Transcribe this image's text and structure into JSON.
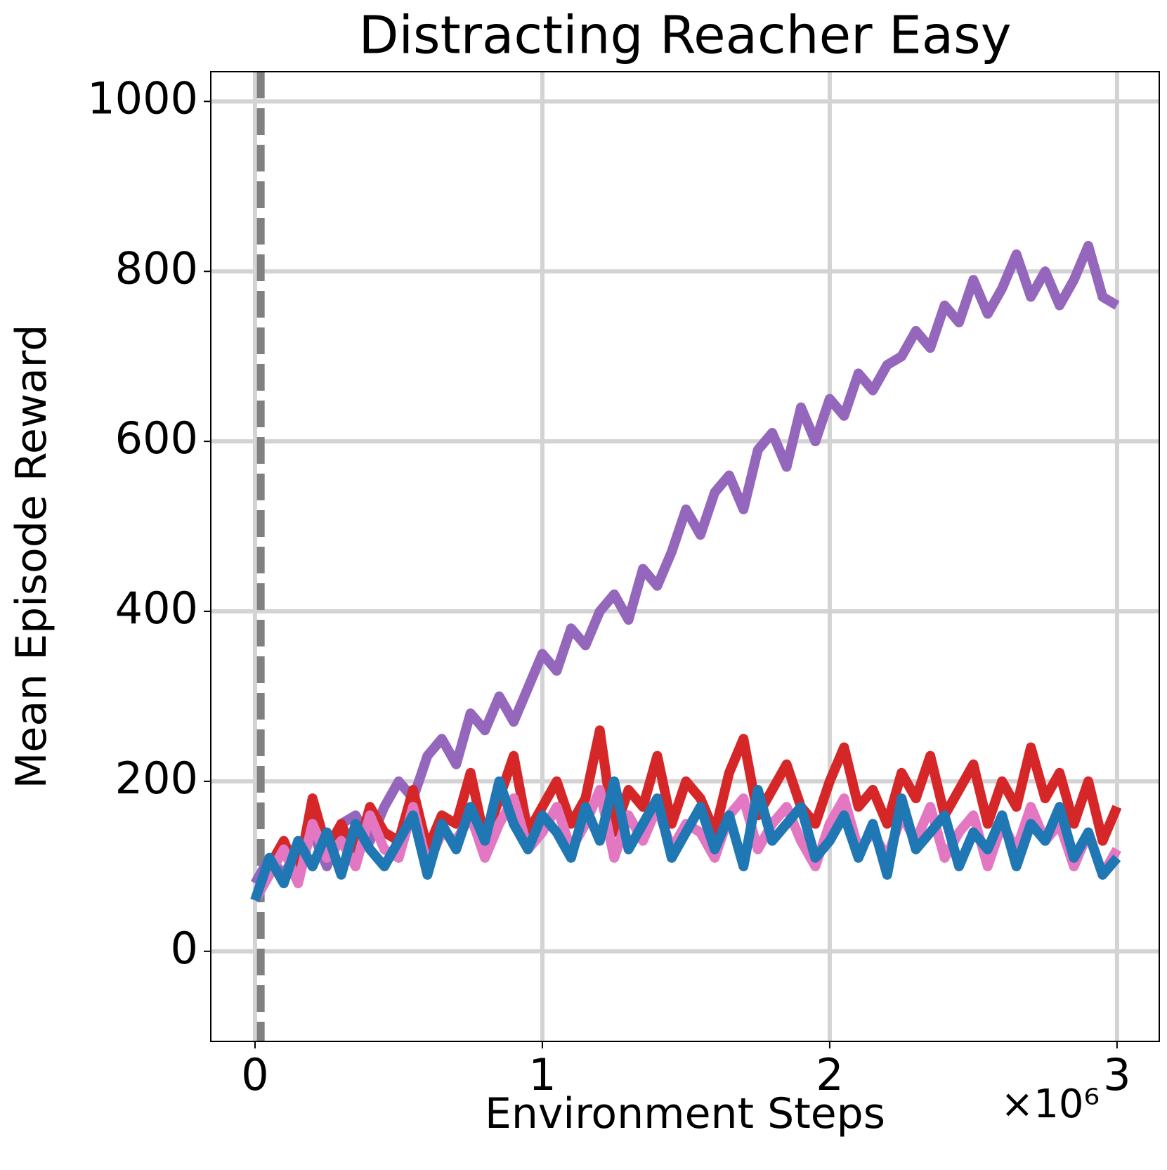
{
  "chart_data": {
    "type": "line",
    "title": "Distracting Reacher Easy",
    "xlabel": "Environment Steps",
    "ylabel": "Mean Episode Reward",
    "x_offset_label": "×10⁶",
    "x": [
      0,
      50000,
      100000,
      150000,
      200000,
      250000,
      300000,
      350000,
      400000,
      450000,
      500000,
      550000,
      600000,
      650000,
      700000,
      750000,
      800000,
      850000,
      900000,
      950000,
      1000000,
      1050000,
      1100000,
      1150000,
      1200000,
      1250000,
      1300000,
      1350000,
      1400000,
      1450000,
      1500000,
      1550000,
      1600000,
      1650000,
      1700000,
      1750000,
      1800000,
      1850000,
      1900000,
      1950000,
      2000000,
      2050000,
      2100000,
      2150000,
      2200000,
      2250000,
      2300000,
      2350000,
      2400000,
      2450000,
      2500000,
      2550000,
      2600000,
      2650000,
      2700000,
      2750000,
      2800000,
      2850000,
      2900000,
      2950000,
      3000000
    ],
    "series": [
      {
        "color": "#9467bd",
        "values": [
          80,
          110,
          90,
          120,
          140,
          100,
          150,
          160,
          130,
          170,
          200,
          180,
          230,
          250,
          220,
          280,
          260,
          300,
          270,
          310,
          350,
          330,
          380,
          360,
          400,
          420,
          390,
          450,
          430,
          470,
          520,
          490,
          540,
          560,
          520,
          590,
          610,
          570,
          640,
          600,
          650,
          630,
          680,
          660,
          690,
          700,
          730,
          710,
          760,
          740,
          790,
          750,
          780,
          820,
          770,
          800,
          760,
          790,
          830,
          770,
          760
        ]
      },
      {
        "color": "#d62728",
        "values": [
          60,
          100,
          130,
          90,
          180,
          120,
          150,
          110,
          170,
          140,
          130,
          190,
          120,
          160,
          150,
          210,
          130,
          180,
          230,
          140,
          170,
          200,
          150,
          180,
          260,
          140,
          190,
          170,
          230,
          150,
          200,
          180,
          140,
          210,
          250,
          160,
          190,
          220,
          170,
          150,
          200,
          240,
          170,
          190,
          150,
          210,
          180,
          230,
          160,
          190,
          220,
          150,
          200,
          170,
          240,
          180,
          210,
          150,
          200,
          130,
          170
        ]
      },
      {
        "color": "#e377c2",
        "values": [
          60,
          90,
          120,
          80,
          150,
          110,
          130,
          100,
          160,
          120,
          110,
          170,
          100,
          140,
          130,
          160,
          110,
          150,
          180,
          120,
          140,
          170,
          120,
          150,
          190,
          110,
          160,
          130,
          170,
          120,
          150,
          140,
          110,
          160,
          180,
          120,
          150,
          170,
          130,
          100,
          150,
          180,
          120,
          140,
          110,
          160,
          130,
          170,
          110,
          140,
          160,
          100,
          150,
          120,
          170,
          130,
          150,
          100,
          140,
          90,
          120
        ]
      },
      {
        "color": "#1f77b4",
        "values": [
          60,
          110,
          80,
          130,
          100,
          140,
          90,
          150,
          120,
          100,
          130,
          160,
          90,
          150,
          120,
          170,
          130,
          200,
          150,
          120,
          160,
          140,
          110,
          170,
          130,
          200,
          120,
          150,
          180,
          110,
          140,
          170,
          120,
          160,
          100,
          190,
          130,
          150,
          170,
          110,
          130,
          160,
          110,
          150,
          90,
          180,
          120,
          140,
          160,
          100,
          140,
          120,
          160,
          100,
          150,
          130,
          170,
          110,
          140,
          90,
          110
        ]
      }
    ],
    "vline": 20000,
    "vline_color": "#808080",
    "xlim": [
      -154000,
      3147000
    ],
    "xticks": [
      {
        "value": 0,
        "label": "0"
      },
      {
        "value": 1000000,
        "label": "1"
      },
      {
        "value": 2000000,
        "label": "2"
      },
      {
        "value": 3000000,
        "label": "3"
      }
    ],
    "ylim": [
      -106,
      1035
    ],
    "yticks": [
      0,
      200,
      400,
      600,
      800,
      1000
    ],
    "grid": true
  }
}
